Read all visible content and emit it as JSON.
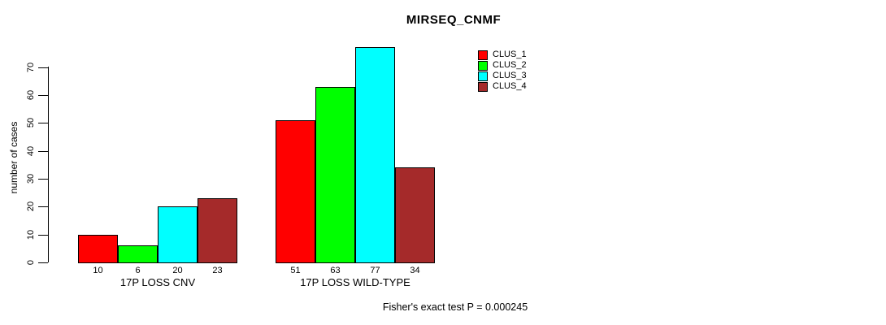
{
  "chart_data": {
    "type": "bar",
    "title": "MIRSEQ_CNMF",
    "ylabel": "number of cases",
    "xlabel": "",
    "categories": [
      "17P LOSS CNV",
      "17P LOSS WILD-TYPE"
    ],
    "series": [
      {
        "name": "CLUS_1",
        "color": "#FF0000",
        "values": [
          10,
          51
        ]
      },
      {
        "name": "CLUS_2",
        "color": "#00FF00",
        "values": [
          6,
          63
        ]
      },
      {
        "name": "CLUS_3",
        "color": "#00FFFF",
        "values": [
          20,
          77
        ]
      },
      {
        "name": "CLUS_4",
        "color": "#A52A2A",
        "values": [
          23,
          34
        ]
      }
    ],
    "bar_value_labels": [
      [
        "10",
        "6",
        "20",
        "23"
      ],
      [
        "51",
        "63",
        "77",
        "34"
      ]
    ],
    "ylim": [
      0,
      70
    ],
    "yticks": [
      0,
      10,
      20,
      30,
      40,
      50,
      60,
      70
    ],
    "grid": false,
    "legend_position": "top-right",
    "legend_frame": false,
    "footnote": "Fisher's exact test P = 0.000245"
  }
}
